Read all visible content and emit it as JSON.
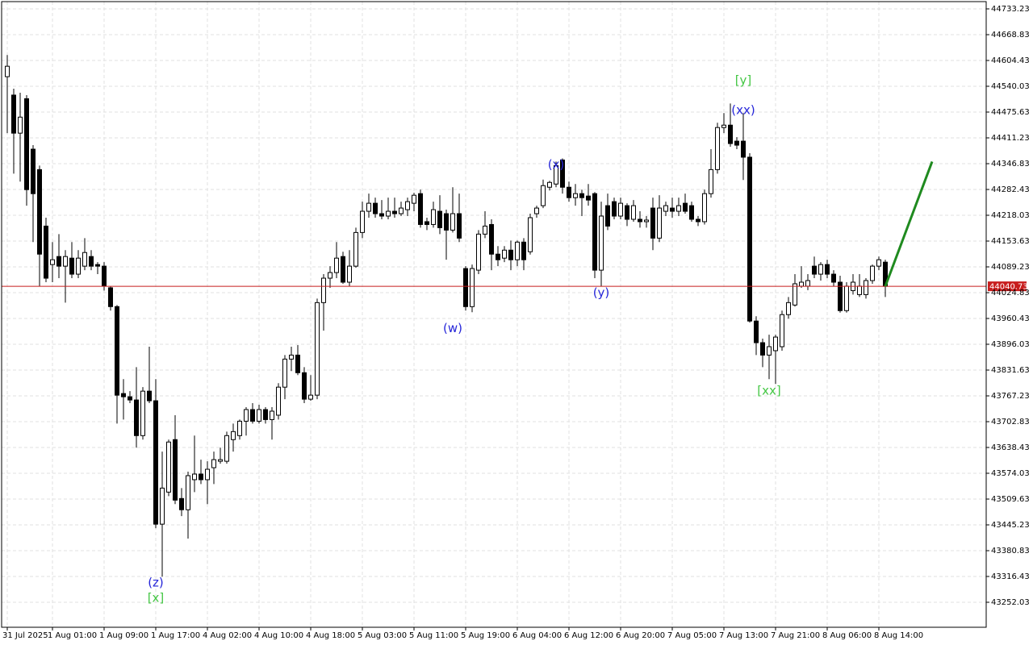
{
  "chart_data": {
    "type": "candlestick",
    "ylim": [
      43189.63,
      44751.34
    ],
    "yticks": [
      44733.23,
      44668.83,
      44604.43,
      44540.03,
      44475.63,
      44411.23,
      44346.83,
      44282.43,
      44218.03,
      44153.63,
      44089.23,
      44024.83,
      43960.43,
      43896.03,
      43831.63,
      43767.23,
      43702.83,
      43638.43,
      43574.03,
      43509.63,
      43445.23,
      43380.83,
      43316.43,
      43252.03
    ],
    "grid": true,
    "up_color": "#ffffff",
    "down_color": "#000000",
    "current_price": 44040.73,
    "current_price_color": "#c81e1e",
    "categories": [
      "31 Jul 2025",
      null,
      null,
      null,
      null,
      null,
      null,
      "1 Aug 01:00",
      null,
      null,
      null,
      null,
      null,
      null,
      null,
      "1 Aug 09:00",
      null,
      null,
      null,
      null,
      null,
      null,
      null,
      "1 Aug 17:00",
      null,
      null,
      null,
      null,
      null,
      null,
      null,
      "4 Aug 02:00",
      null,
      null,
      null,
      null,
      null,
      null,
      null,
      "4 Aug 10:00",
      null,
      null,
      null,
      null,
      null,
      null,
      null,
      "4 Aug 18:00",
      null,
      null,
      null,
      null,
      null,
      null,
      null,
      "5 Aug 03:00",
      null,
      null,
      null,
      null,
      null,
      null,
      null,
      "5 Aug 11:00",
      null,
      null,
      null,
      null,
      null,
      null,
      null,
      "5 Aug 19:00",
      null,
      null,
      null,
      null,
      null,
      null,
      null,
      "6 Aug 04:00",
      null,
      null,
      null,
      null,
      null,
      null,
      null,
      "6 Aug 12:00",
      null,
      null,
      null,
      null,
      null,
      null,
      null,
      "6 Aug 20:00",
      null,
      null,
      null,
      null,
      null,
      null,
      null,
      "7 Aug 05:00",
      null,
      null,
      null,
      null,
      null,
      null,
      null,
      "7 Aug 13:00",
      null,
      null,
      null,
      null,
      null,
      null,
      null,
      "7 Aug 21:00",
      null,
      null,
      null,
      null,
      null,
      null,
      null,
      "8 Aug 06:00",
      null,
      null,
      null,
      null,
      null,
      null,
      null,
      "8 Aug 14:00",
      null
    ],
    "ohlc": [
      [
        44564,
        44618,
        44423,
        44590
      ],
      [
        44518,
        44534,
        44322,
        44423
      ],
      [
        44423,
        44524,
        44302,
        44463
      ],
      [
        44509,
        44518,
        44242,
        44282
      ],
      [
        44383,
        44393,
        44151,
        44272
      ],
      [
        44332,
        44342,
        44041,
        44121
      ],
      [
        44191,
        44212,
        44051,
        44061
      ],
      [
        44095,
        44151,
        44051,
        44107
      ],
      [
        44115,
        44171,
        44061,
        44091
      ],
      [
        44091,
        44131,
        44000,
        44115
      ],
      [
        44111,
        44151,
        44061,
        44071
      ],
      [
        44071,
        44131,
        44061,
        44111
      ],
      [
        44091,
        44161,
        44081,
        44125
      ],
      [
        44115,
        44131,
        44081,
        44091
      ],
      [
        44095,
        44101,
        44071,
        44091
      ],
      [
        44091,
        44101,
        44030,
        44041
      ],
      [
        44037,
        44041,
        43980,
        43990
      ],
      [
        43990,
        43994,
        43698,
        43769
      ],
      [
        43773,
        43809,
        43708,
        43765
      ],
      [
        43765,
        43779,
        43749,
        43757
      ],
      [
        43757,
        43839,
        43638,
        43668
      ],
      [
        43668,
        43789,
        43658,
        43779
      ],
      [
        43779,
        43890,
        43749,
        43755
      ],
      [
        43755,
        43809,
        43437,
        43447
      ],
      [
        43447,
        43628,
        43316,
        43537
      ],
      [
        43527,
        43658,
        43517,
        43652
      ],
      [
        43658,
        43719,
        43497,
        43507
      ],
      [
        43511,
        43537,
        43467,
        43483
      ],
      [
        43483,
        43578,
        43411,
        43568
      ],
      [
        43558,
        43668,
        43527,
        43572
      ],
      [
        43572,
        43608,
        43547,
        43558
      ],
      [
        43558,
        43604,
        43497,
        43584
      ],
      [
        43588,
        43628,
        43547,
        43608
      ],
      [
        43604,
        43638,
        43598,
        43608
      ],
      [
        43604,
        43678,
        43598,
        43668
      ],
      [
        43658,
        43698,
        43628,
        43678
      ],
      [
        43668,
        43708,
        43658,
        43704
      ],
      [
        43704,
        43739,
        43668,
        43733
      ],
      [
        43733,
        43749,
        43698,
        43704
      ],
      [
        43704,
        43745,
        43698,
        43733
      ],
      [
        43733,
        43739,
        43698,
        43708
      ],
      [
        43708,
        43739,
        43658,
        43729
      ],
      [
        43719,
        43799,
        43708,
        43789
      ],
      [
        43789,
        43869,
        43759,
        43859
      ],
      [
        43859,
        43890,
        43829,
        43869
      ],
      [
        43869,
        43894,
        43819,
        43825
      ],
      [
        43825,
        43839,
        43749,
        43759
      ],
      [
        43759,
        43819,
        43755,
        43769
      ],
      [
        43769,
        44010,
        43759,
        44000
      ],
      [
        44000,
        44071,
        43930,
        44061
      ],
      [
        44061,
        44091,
        44037,
        44075
      ],
      [
        44075,
        44151,
        44061,
        44111
      ],
      [
        44115,
        44127,
        44047,
        44051
      ],
      [
        44051,
        44131,
        44041,
        44091
      ],
      [
        44091,
        44187,
        44087,
        44175
      ],
      [
        44175,
        44252,
        44161,
        44228
      ],
      [
        44228,
        44272,
        44212,
        44248
      ],
      [
        44248,
        44262,
        44212,
        44222
      ],
      [
        44222,
        44256,
        44208,
        44216
      ],
      [
        44216,
        44262,
        44208,
        44228
      ],
      [
        44228,
        44262,
        44212,
        44222
      ],
      [
        44222,
        44252,
        44216,
        44236
      ],
      [
        44232,
        44262,
        44216,
        44252
      ],
      [
        44248,
        44274,
        44228,
        44268
      ],
      [
        44272,
        44282,
        44187,
        44195
      ],
      [
        44202,
        44212,
        44181,
        44195
      ],
      [
        44195,
        44252,
        44187,
        44232
      ],
      [
        44228,
        44268,
        44171,
        44187
      ],
      [
        44222,
        44232,
        44107,
        44181
      ],
      [
        44181,
        44288,
        44175,
        44222
      ],
      [
        44222,
        44272,
        44151,
        44161
      ],
      [
        44085,
        44091,
        43980,
        43990
      ],
      [
        43990,
        44095,
        43976,
        44085
      ],
      [
        44081,
        44181,
        44071,
        44171
      ],
      [
        44171,
        44228,
        44161,
        44191
      ],
      [
        44195,
        44208,
        44081,
        44121
      ],
      [
        44121,
        44141,
        44091,
        44107
      ],
      [
        44111,
        44141,
        44101,
        44131
      ],
      [
        44131,
        44155,
        44081,
        44107
      ],
      [
        44107,
        44155,
        44091,
        44151
      ],
      [
        44151,
        44161,
        44081,
        44107
      ],
      [
        44127,
        44222,
        44120,
        44212
      ],
      [
        44222,
        44242,
        44212,
        44236
      ],
      [
        44242,
        44307,
        44236,
        44292
      ],
      [
        44288,
        44304,
        44280,
        44300
      ],
      [
        44296,
        44352,
        44288,
        44342
      ],
      [
        44356,
        44360,
        44272,
        44288
      ],
      [
        44288,
        44302,
        44252,
        44262
      ],
      [
        44262,
        44296,
        44242,
        44272
      ],
      [
        44272,
        44282,
        44216,
        44262
      ],
      [
        44266,
        44296,
        44242,
        44256
      ],
      [
        44272,
        44276,
        44061,
        44081
      ],
      [
        44081,
        44252,
        44041,
        44216
      ],
      [
        44242,
        44272,
        44181,
        44191
      ],
      [
        44252,
        44262,
        44208,
        44216
      ],
      [
        44216,
        44262,
        44208,
        44248
      ],
      [
        44242,
        44248,
        44191,
        44208
      ],
      [
        44208,
        44256,
        44202,
        44242
      ],
      [
        44208,
        44228,
        44187,
        44202
      ],
      [
        44202,
        44216,
        44187,
        44206
      ],
      [
        44236,
        44262,
        44131,
        44161
      ],
      [
        44161,
        44268,
        44151,
        44236
      ],
      [
        44228,
        44252,
        44216,
        44242
      ],
      [
        44236,
        44262,
        44212,
        44228
      ],
      [
        44228,
        44262,
        44216,
        44242
      ],
      [
        44248,
        44272,
        44222,
        44228
      ],
      [
        44242,
        44252,
        44202,
        44208
      ],
      [
        44208,
        44216,
        44191,
        44202
      ],
      [
        44202,
        44282,
        44195,
        44272
      ],
      [
        44272,
        44383,
        44262,
        44332
      ],
      [
        44332,
        44449,
        44322,
        44437
      ],
      [
        44437,
        44473,
        44423,
        44443
      ],
      [
        44443,
        44497,
        44389,
        44397
      ],
      [
        44403,
        44413,
        44383,
        44393
      ],
      [
        44403,
        44473,
        44306,
        44363
      ],
      [
        44363,
        44373,
        43950,
        43954
      ],
      [
        43954,
        43966,
        43869,
        43900
      ],
      [
        43900,
        43910,
        43839,
        43869
      ],
      [
        43869,
        43920,
        43809,
        43890
      ],
      [
        43880,
        43920,
        43797,
        43914
      ],
      [
        43890,
        43980,
        43880,
        43970
      ],
      [
        43970,
        44014,
        43960,
        44000
      ],
      [
        43994,
        44071,
        43990,
        44047
      ],
      [
        44041,
        44091,
        44037,
        44051
      ],
      [
        44041,
        44071,
        44031,
        44055
      ],
      [
        44091,
        44115,
        44061,
        44071
      ],
      [
        44071,
        44101,
        44055,
        44095
      ],
      [
        44095,
        44107,
        44061,
        44071
      ],
      [
        44071,
        44081,
        44041,
        44051
      ],
      [
        44051,
        44067,
        43975,
        43980
      ],
      [
        43980,
        44051,
        43975,
        44041
      ],
      [
        44030,
        44071,
        44020,
        44051
      ],
      [
        44020,
        44071,
        44014,
        44041
      ],
      [
        44020,
        44061,
        44010,
        44055
      ],
      [
        44055,
        44095,
        44047,
        44091
      ],
      [
        44091,
        44115,
        44081,
        44107
      ],
      [
        44101,
        44107,
        44014,
        44040.73
      ]
    ],
    "projection": {
      "color": "#1f8a1f",
      "x": [
        136,
        143.25
      ],
      "values": [
        44040.73,
        44352
      ]
    },
    "annotations": [
      {
        "text": "(z)",
        "color": "#2626d9",
        "index": 23,
        "value": 43300
      },
      {
        "text": "[x]",
        "color": "#44c744",
        "index": 23,
        "value": 43262
      },
      {
        "text": "(w)",
        "color": "#2626d9",
        "index": 69,
        "value": 43935
      },
      {
        "text": "(x)",
        "color": "#2626d9",
        "index": 85,
        "value": 44344
      },
      {
        "text": "(y)",
        "color": "#2626d9",
        "index": 92,
        "value": 44024
      },
      {
        "text": "[y]",
        "color": "#44c744",
        "index": 114,
        "value": 44554
      },
      {
        "text": "(xx)",
        "color": "#2626d9",
        "index": 114,
        "value": 44480
      },
      {
        "text": "[xx]",
        "color": "#44c744",
        "index": 118,
        "value": 43779
      }
    ]
  }
}
